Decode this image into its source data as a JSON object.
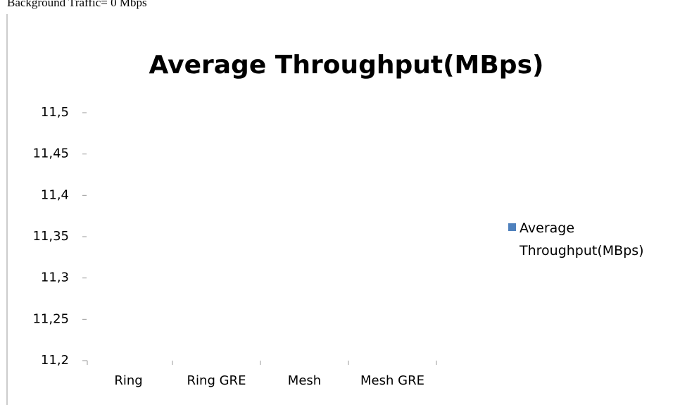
{
  "header": {
    "caption": "Background Traffic= 0 Mbps"
  },
  "chart_data": {
    "type": "bar",
    "title": "Average Throughput(MBps)",
    "categories": [
      "Ring",
      "Ring GRE",
      "Mesh",
      "Mesh GRE"
    ],
    "series": [
      {
        "name": "Average Throughput(MBps)",
        "color": "#4f81bd",
        "values": [
          null,
          null,
          null,
          null
        ]
      }
    ],
    "ylim": [
      11.2,
      11.5
    ],
    "yticks": [
      {
        "value": 11.2,
        "label": "11,2"
      },
      {
        "value": 11.25,
        "label": "11,25"
      },
      {
        "value": 11.3,
        "label": "11,3"
      },
      {
        "value": 11.35,
        "label": "11,35"
      },
      {
        "value": 11.4,
        "label": "11,4"
      },
      {
        "value": 11.45,
        "label": "11,45"
      },
      {
        "value": 11.5,
        "label": "11,5"
      }
    ],
    "legend": "right",
    "grid": false
  }
}
